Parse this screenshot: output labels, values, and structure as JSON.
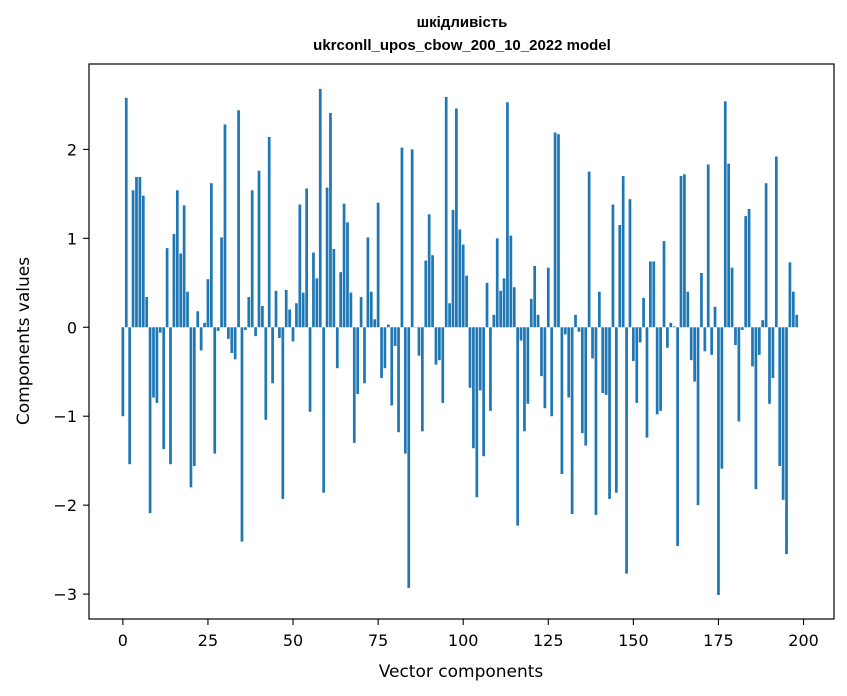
{
  "chart_data": {
    "type": "bar",
    "title_line1": "шкідливість",
    "title_line2": "ukrconll_upos_cbow_200_10_2022 model",
    "xlabel": "Vector components",
    "ylabel": "Components values",
    "xlim": [
      -9.95,
      208.95
    ],
    "ylim": [
      -3.28,
      2.96
    ],
    "xticks": [
      "0",
      "25",
      "50",
      "75",
      "100",
      "125",
      "150",
      "175",
      "200"
    ],
    "yticks": [
      "−3",
      "−2",
      "−1",
      "0",
      "1",
      "2"
    ],
    "grid": false,
    "bar_color": "#1f77b4",
    "values": [
      -1.0,
      2.58,
      -1.54,
      1.54,
      1.69,
      1.69,
      1.48,
      0.34,
      -2.09,
      -0.79,
      -0.85,
      -0.06,
      -1.37,
      0.89,
      -1.54,
      1.05,
      1.54,
      0.83,
      1.37,
      0.4,
      -1.8,
      -1.56,
      0.18,
      -0.26,
      0.05,
      0.54,
      1.62,
      -1.42,
      -0.04,
      1.01,
      2.28,
      -0.13,
      -0.29,
      -0.36,
      2.44,
      -2.41,
      -0.03,
      0.34,
      1.54,
      -0.1,
      1.76,
      0.24,
      -1.04,
      2.14,
      -0.63,
      0.41,
      -0.12,
      -1.93,
      0.42,
      0.2,
      -0.16,
      0.27,
      1.38,
      0.39,
      1.56,
      -0.95,
      0.84,
      0.55,
      2.68,
      -1.86,
      1.57,
      2.41,
      0.88,
      -0.46,
      0.62,
      1.39,
      1.18,
      0.39,
      -1.3,
      -0.75,
      0.34,
      -0.63,
      1.01,
      0.4,
      0.09,
      1.4,
      -0.57,
      -0.46,
      0.03,
      -0.88,
      -0.21,
      -1.18,
      2.02,
      -1.42,
      -2.93,
      2.0,
      0.0,
      -0.32,
      -1.17,
      0.75,
      1.27,
      0.81,
      -0.42,
      -0.37,
      -0.85,
      2.59,
      0.27,
      1.32,
      2.46,
      1.1,
      0.93,
      0.58,
      -0.68,
      -1.36,
      -1.91,
      -0.71,
      -1.45,
      0.5,
      -0.94,
      0.14,
      1.0,
      0.41,
      0.55,
      2.53,
      1.03,
      0.45,
      -2.23,
      -0.15,
      -1.17,
      -0.86,
      0.32,
      0.69,
      0.14,
      -0.55,
      -0.91,
      0.67,
      -1.0,
      2.19,
      2.17,
      -1.65,
      -0.08,
      -0.79,
      -2.1,
      0.14,
      -0.05,
      -1.19,
      -1.33,
      1.75,
      -0.35,
      -2.11,
      0.4,
      -0.74,
      -0.76,
      -1.93,
      1.38,
      -1.86,
      1.15,
      1.7,
      -2.77,
      1.44,
      -0.38,
      -0.85,
      -0.17,
      0.33,
      -1.24,
      0.74,
      0.74,
      -0.98,
      -0.94,
      0.97,
      -0.23,
      0.05,
      0.01,
      -2.46,
      1.7,
      1.72,
      0.4,
      -0.37,
      -0.61,
      -2.0,
      0.61,
      -0.27,
      1.83,
      -0.31,
      0.23,
      -3.01,
      -1.59,
      2.54,
      1.84,
      0.67,
      -0.2,
      -1.06,
      -0.03,
      1.25,
      1.33,
      -0.44,
      -1.82,
      -0.31,
      0.08,
      1.62,
      -0.86,
      -0.57,
      1.92,
      -1.56,
      -1.94,
      -2.55,
      0.73,
      0.4,
      0.14
    ]
  }
}
